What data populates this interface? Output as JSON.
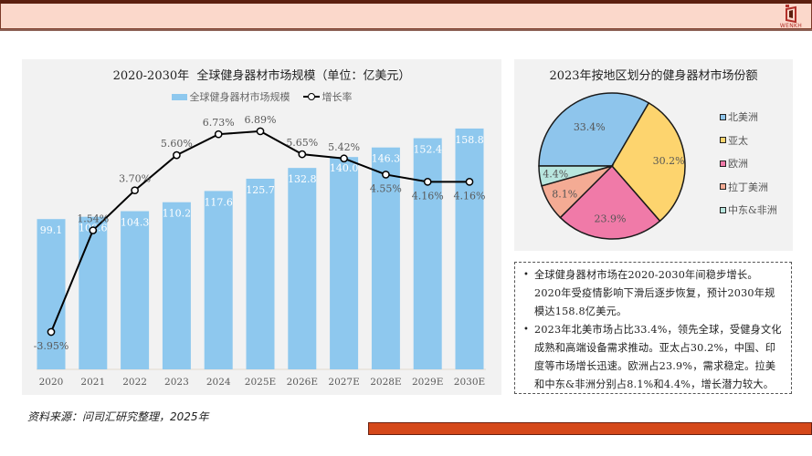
{
  "header": {
    "logo_text": "WENKH",
    "colors": {
      "top_strip": "#5b1f0f",
      "band": "#fbd8cb",
      "accent": "#b2302a"
    }
  },
  "summary": {
    "bullets": [
      "全球健身器材市场在2020-2030年间稳步增长。2020年受疫情影响下滑后逐步恢复，预计2030年规模达158.8亿美元。",
      "2023年北美市场占比33.4%，领先全球，受健身文化成熟和高端设备需求推动。亚太占30.2%，中国、印度等市场增长迅速。欧洲占23.9%，需求稳定。拉美和中东&非洲分别占8.1%和4.4%，增长潜力较大。"
    ]
  },
  "source": "资料来源：问司汇研究整理，2025年",
  "footer": {
    "bar_color": "#d5481a"
  },
  "chart_data": [
    {
      "type": "bar+line",
      "title": "2020-2030年  全球健身器材市场规模（单位：亿美元）",
      "xlabel": "",
      "ylabel": "",
      "grid": false,
      "legend_position": "top",
      "categories": [
        "2020",
        "2021",
        "2022",
        "2023",
        "2024",
        "2025E",
        "2026E",
        "2027E",
        "2028E",
        "2029E",
        "2030E"
      ],
      "series": [
        {
          "name": "全球健身器材市场规模",
          "type": "bar",
          "color": "#8ec8ee",
          "values": [
            99.1,
            100.6,
            104.3,
            110.2,
            117.6,
            125.7,
            132.8,
            140.0,
            146.3,
            152.4,
            158.8
          ],
          "labels": [
            "99.1",
            "100.6",
            "104.3",
            "110.2",
            "117.6",
            "125.7",
            "132.8",
            "140.0",
            "146.3",
            "152.4",
            "158.8"
          ]
        },
        {
          "name": "增长率",
          "type": "line",
          "color": "#000000",
          "values": [
            -3.95,
            1.54,
            3.7,
            5.6,
            6.73,
            6.89,
            5.65,
            5.42,
            4.55,
            4.16,
            4.16
          ],
          "labels": [
            "-3.95%",
            "1.54%",
            "3.70%",
            "5.60%",
            "6.73%",
            "6.89%",
            "5.65%",
            "5.42%",
            "4.55%",
            "4.16%",
            "4.16%"
          ],
          "label_side": [
            "below",
            "above",
            "above",
            "above",
            "above",
            "above",
            "above",
            "above",
            "below",
            "below",
            "below"
          ]
        }
      ]
    },
    {
      "type": "pie",
      "title": "2023年按地区划分的健身器材市场份额",
      "legend_position": "right",
      "categories": [
        "北美洲",
        "亚太",
        "欧洲",
        "拉丁美洲",
        "中东&非洲"
      ],
      "values": [
        33.4,
        30.2,
        23.9,
        8.1,
        4.4
      ],
      "labels": [
        "33.4%",
        "30.2%",
        "23.9%",
        "8.1%",
        "4.4%"
      ],
      "colors": [
        "#8ec5ec",
        "#fdd46e",
        "#f07aa8",
        "#f4ab94",
        "#b8e6de"
      ]
    }
  ]
}
